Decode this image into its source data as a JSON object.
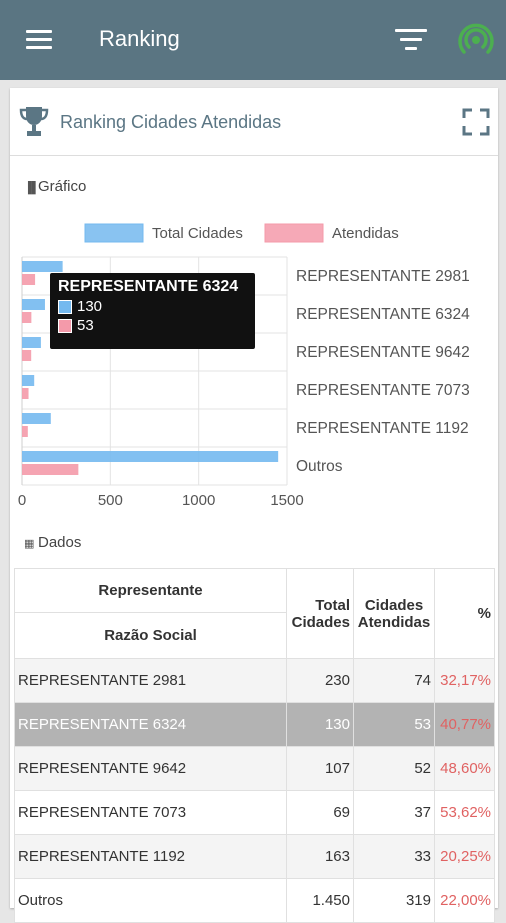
{
  "appbar": {
    "title": "Ranking",
    "menu_icon": "hamburger-menu-icon",
    "filter_icon": "filter-icon",
    "signal_icon": "signal-icon",
    "signal_color": "#4caf50"
  },
  "card": {
    "title": "Ranking Cidades Atendidas",
    "trophy_icon": "trophy-icon",
    "expand_icon": "fullscreen-icon"
  },
  "chart_section": {
    "label": "Gráfico",
    "icon": "bar-chart-icon"
  },
  "data_section": {
    "label": "Dados",
    "icon": "table-icon"
  },
  "chart_data": {
    "type": "bar",
    "orientation": "horizontal",
    "categories": [
      "REPRESENTANTE 2981",
      "REPRESENTANTE 6324",
      "REPRESENTANTE 9642",
      "REPRESENTANTE 7073",
      "REPRESENTANTE 1192",
      "Outros"
    ],
    "series": [
      {
        "name": "Total Cidades",
        "values": [
          230,
          130,
          107,
          69,
          163,
          1450
        ],
        "color": "#74b9ef"
      },
      {
        "name": "Atendidas",
        "values": [
          74,
          53,
          52,
          37,
          33,
          319
        ],
        "color": "#f49aaa"
      }
    ],
    "xticks": [
      "0",
      "500",
      "1000",
      "1500"
    ],
    "xlim": [
      0,
      1500
    ],
    "legend": "top",
    "grid": true,
    "tooltip": {
      "title": "REPRESENTANTE 6324",
      "values": [
        "130",
        "53"
      ]
    }
  },
  "table": {
    "headers": {
      "group": "Representante",
      "name": "Razão Social",
      "total": "Total Cidades",
      "served": "Cidades Atendidas",
      "pct": "%"
    },
    "rows": [
      {
        "name": "REPRESENTANTE 2981",
        "total": "230",
        "served": "74",
        "pct": "32,17%"
      },
      {
        "name": "REPRESENTANTE 6324",
        "total": "130",
        "served": "53",
        "pct": "40,77%",
        "selected": true
      },
      {
        "name": "REPRESENTANTE 9642",
        "total": "107",
        "served": "52",
        "pct": "48,60%"
      },
      {
        "name": "REPRESENTANTE 7073",
        "total": "69",
        "served": "37",
        "pct": "53,62%"
      },
      {
        "name": "REPRESENTANTE 1192",
        "total": "163",
        "served": "33",
        "pct": "20,25%"
      },
      {
        "name": "Outros",
        "total": "1.450",
        "served": "319",
        "pct": "22,00%"
      }
    ]
  }
}
